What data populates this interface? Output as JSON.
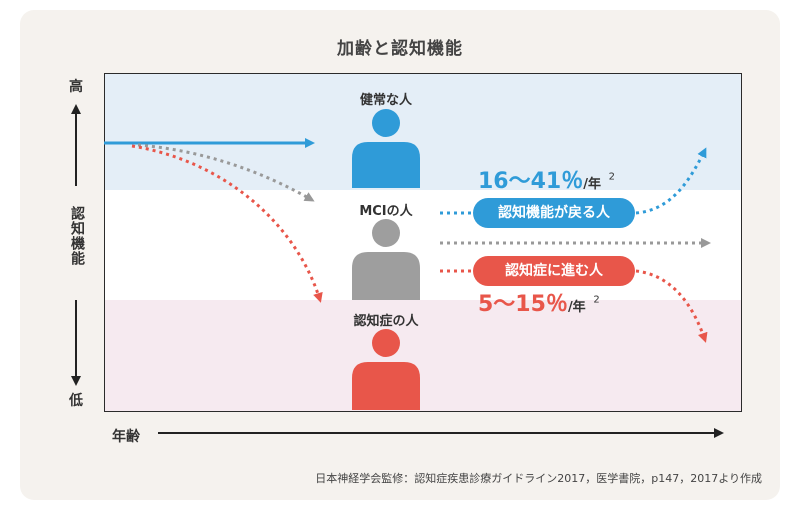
{
  "title": "加齢と認知機能",
  "y_axis": {
    "high": "高",
    "low": "低",
    "label": "認知機能"
  },
  "x_axis": {
    "label": "年齢"
  },
  "groups": {
    "healthy": "健常な人",
    "mci": "MCIの人",
    "dementia": "認知症の人"
  },
  "outcomes": {
    "recover_label": "認知機能が戻る人",
    "recover_rate": "16～41％",
    "progress_label": "認知症に進む人",
    "progress_rate": "5～15％",
    "rate_unit": "/年",
    "footnote_ref": "2"
  },
  "source": "日本神経学会監修：認知症疾患診療ガイドライン2017，医学書院，p147，2017より作成",
  "colors": {
    "healthy": "#2f9bd8",
    "mci": "#999999",
    "dementia": "#e8564a",
    "band_top": "#e4eef7",
    "band_bottom": "#f6eaf0"
  }
}
